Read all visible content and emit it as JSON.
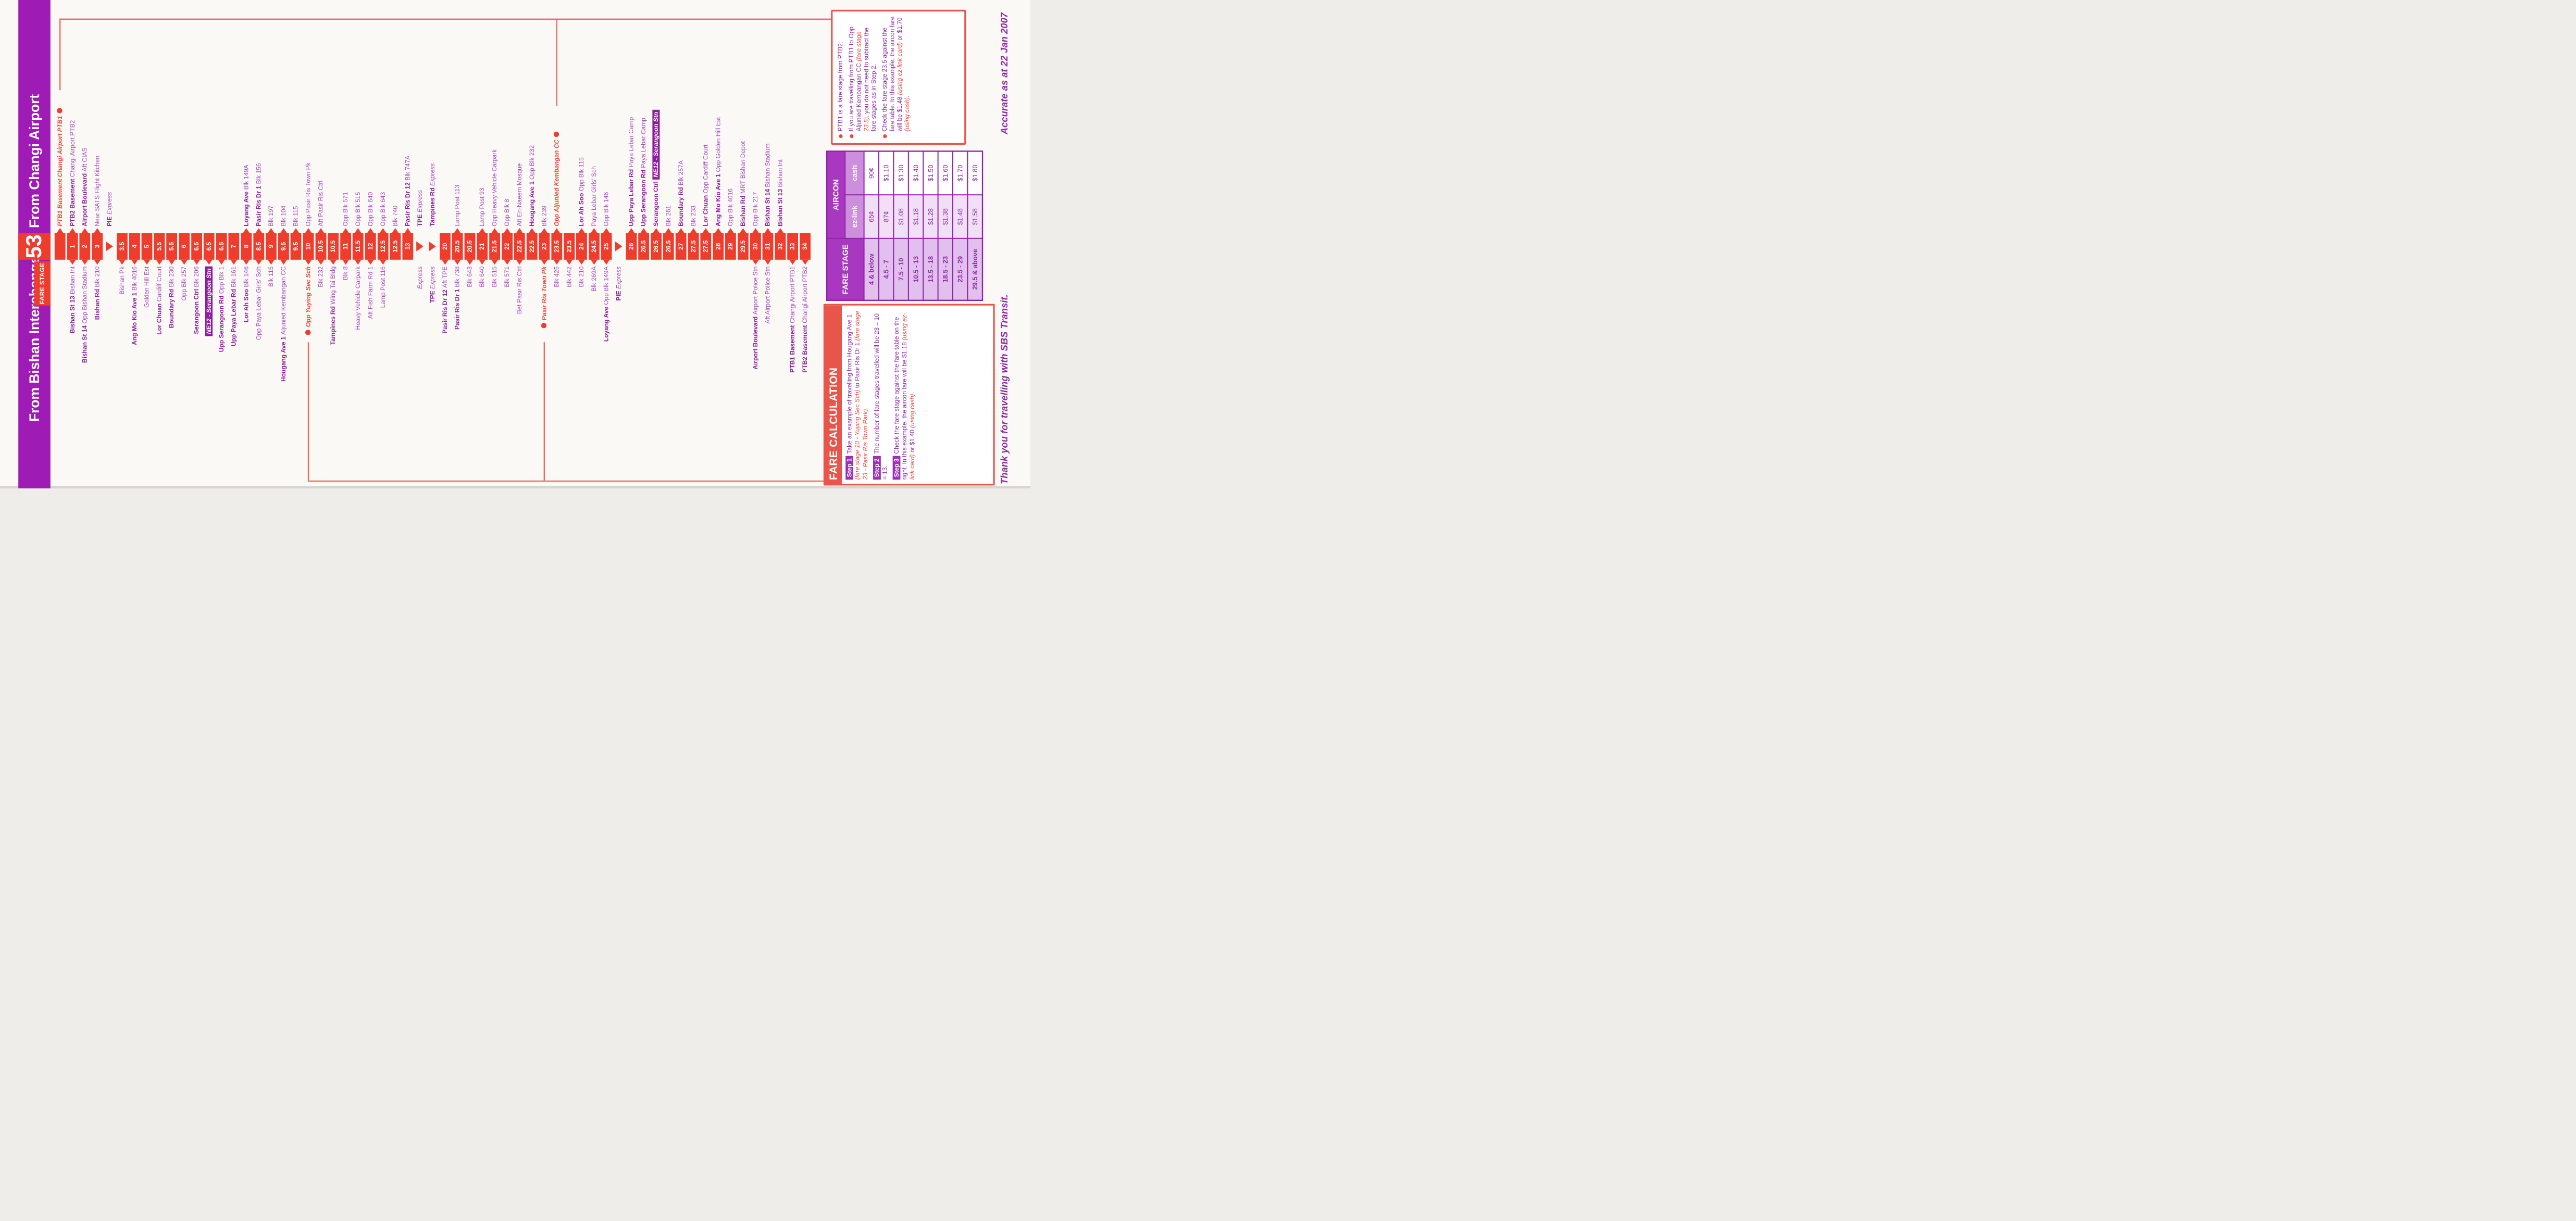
{
  "banner": {
    "left": "From Bishan Interchange",
    "service": "53",
    "fare_stage_label": "FARE STAGE",
    "right": "From Changi Airport"
  },
  "strip": {
    "stops": [
      {
        "n": "",
        "right": {
          "red": "PTB1 Basement Changi Airport PTB1",
          "dot": true
        }
      },
      {
        "n": "1",
        "left": {
          "b": "Bishan St 13",
          "r": "Bishan Int"
        },
        "right": {
          "b": "PTB2 Basement",
          "r": "Changi Airport PTB2"
        }
      },
      {
        "n": "2",
        "left": {
          "b": "Bishan St 14",
          "r": "Opp Bishan Stadium"
        },
        "right": {
          "b": "Airport Boulevard",
          "r": "Aft CIAS"
        }
      },
      {
        "n": "3",
        "left": {
          "b": "Bishan Rd",
          "r": "Blk 210"
        },
        "right": {
          "r": "Near SATS Flight Kitchen"
        }
      },
      {
        "t": "tri",
        "right": {
          "b": "PIE",
          "exp": "Express"
        }
      },
      {
        "n": "3.5",
        "left": {
          "r": "Bishan Pk"
        }
      },
      {
        "n": "4",
        "left": {
          "b": "Ang Mo Kio Ave 1",
          "r": "Blk 4016"
        }
      },
      {
        "n": "5",
        "left": {
          "r": "Golden Hill Est"
        }
      },
      {
        "n": "5.5",
        "left": {
          "b": "Lor Chuan",
          "r": "Cardiff Court"
        }
      },
      {
        "n": "5.5",
        "left": {
          "b": "Boundary Rd",
          "r": "Blk 230"
        }
      },
      {
        "n": "6",
        "left": {
          "r": "Opp Blk 257"
        }
      },
      {
        "n": "6.5",
        "left": {
          "b": "Serangoon Ctrl",
          "r": "Blk 206"
        }
      },
      {
        "n": "6.5",
        "left": {
          "hl": "NE12 - Serangoon Stn"
        }
      },
      {
        "n": "6.5",
        "left": {
          "b": "Upp Serangoon Rd",
          "r": "Opp Blk 1"
        }
      },
      {
        "n": "7",
        "left": {
          "b": "Upp Paya Lebar Rd",
          "r": "Blk 161"
        }
      },
      {
        "n": "8",
        "left": {
          "b": "Lor Ah Soo",
          "r": "Blk 146"
        },
        "right": {
          "b": "Loyang Ave",
          "r": "Blk 149A"
        }
      },
      {
        "n": "8.5",
        "left": {
          "r": "Opp Paya Lebar Girls' Sch"
        },
        "right": {
          "b": "Pasir Ris Dr 1",
          "r": "Blk 156"
        }
      },
      {
        "n": "9",
        "left": {
          "r": "Blk 115"
        },
        "right": {
          "r": "Blk 197"
        }
      },
      {
        "n": "9.5",
        "left": {
          "b": "Hougang Ave 1",
          "r": "Aljunied Kembangan CC"
        },
        "right": {
          "r": "Blk 104"
        }
      },
      {
        "n": "9.5",
        "right": {
          "r": "Blk 115"
        }
      },
      {
        "n": "10",
        "left": {
          "red": "Opp Yuying Sec Sch",
          "dot": true
        },
        "right": {
          "r": "Opp Pasir Ris Town Pk"
        }
      },
      {
        "n": "10.5",
        "left": {
          "r": "Blk 232"
        },
        "right": {
          "r": "Aft Pasir Ris Ctrl"
        }
      },
      {
        "n": "10.5",
        "left": {
          "b": "Tampines Rd",
          "r": "Wing Tai Bldg"
        }
      },
      {
        "n": "11",
        "left": {
          "r": "Blk 8"
        },
        "right": {
          "r": "Opp Blk 571"
        }
      },
      {
        "n": "11.5",
        "left": {
          "r": "Heavy Vehicle Carpark"
        },
        "right": {
          "r": "Opp Blk 515"
        }
      },
      {
        "n": "12",
        "left": {
          "r": "Aft Fish Farm Rd 1"
        },
        "right": {
          "r": "Opp Blk 640"
        }
      },
      {
        "n": "12.5",
        "left": {
          "r": "Lamp Post 116"
        },
        "right": {
          "r": "Opp Blk 643"
        }
      },
      {
        "n": "12.5",
        "right": {
          "r": "Blk 740"
        }
      },
      {
        "n": "13",
        "right": {
          "b": "Pasir Ris Dr 12",
          "r": "Blk 747A"
        }
      },
      {
        "t": "tri",
        "left": {
          "exp": "Express"
        },
        "right": {
          "b": "TPE",
          "exp": "Express"
        }
      },
      {
        "t": "tri",
        "left": {
          "b": "TPE",
          "exp": "Express"
        },
        "right": {
          "b": "Tampines Rd",
          "exp": "Express"
        }
      },
      {
        "n": "20",
        "left": {
          "b": "Pasir Ris Dr 12",
          "r": "Aft TPE"
        }
      },
      {
        "n": "20.5",
        "left": {
          "b": "Pasir Ris Dr 1",
          "r": "Blk 738"
        },
        "right": {
          "r": "Lamp Post 113"
        }
      },
      {
        "n": "20.5",
        "left": {
          "r": "Blk 643"
        }
      },
      {
        "n": "21",
        "left": {
          "r": "Blk 640"
        },
        "right": {
          "r": "Lamp Post 93"
        }
      },
      {
        "n": "21.5",
        "left": {
          "r": "Blk 515"
        },
        "right": {
          "r": "Opp Heavy Vehicle Carpark"
        }
      },
      {
        "n": "22",
        "left": {
          "r": "Blk 571"
        },
        "right": {
          "r": "Opp Blk 8"
        }
      },
      {
        "n": "22.5",
        "left": {
          "r": "Bef Pasir Ris Ctrl"
        },
        "right": {
          "r": "Aft En-Naeem Mosque"
        }
      },
      {
        "n": "22.5",
        "right": {
          "b": "Hougang Ave 1",
          "r": "Opp Blk 232"
        }
      },
      {
        "n": "23",
        "left": {
          "red": "Pasir Ris Town Pk",
          "dot": true
        },
        "right": {
          "r": "Blk 239"
        }
      },
      {
        "n": "23.5",
        "left": {
          "r": "Blk 425"
        },
        "right": {
          "red": "Opp Aljunied Kembangan CC",
          "dot": true
        }
      },
      {
        "n": "23.5",
        "left": {
          "r": "Blk 442"
        }
      },
      {
        "n": "24",
        "left": {
          "r": "Blk 210"
        },
        "right": {
          "b": "Lor Ah Soo",
          "r": "Opp Blk 115"
        }
      },
      {
        "n": "24.5",
        "left": {
          "r": "Blk 269A"
        },
        "right": {
          "r": "Paya Lebar Girls' Sch"
        }
      },
      {
        "n": "25",
        "left": {
          "b": "Loyang Ave",
          "r": "Opp Blk 149A"
        },
        "right": {
          "r": "Opp Blk 146"
        }
      },
      {
        "t": "tri",
        "left": {
          "b": "PIE",
          "exp": "Express"
        }
      },
      {
        "n": "26",
        "right": {
          "b": "Upp Paya Lebar Rd",
          "r": "Paya Lebar Camp"
        }
      },
      {
        "n": "26.5",
        "right": {
          "b": "Upp Serangoon Rd",
          "r": "Paya Lebar Camp"
        }
      },
      {
        "n": "26.5",
        "right": {
          "b": "Serangoon Ctrl",
          "hl": "NE12 - Serangoon Stn"
        }
      },
      {
        "n": "26.5",
        "right": {
          "r": "Blk 261"
        }
      },
      {
        "n": "27",
        "right": {
          "b": "Boundary Rd",
          "r": "Blk 257A"
        }
      },
      {
        "n": "27.5",
        "right": {
          "r": "Blk 233"
        }
      },
      {
        "n": "27.5",
        "right": {
          "b": "Lor Chuan",
          "r": "Opp Cardiff Court"
        }
      },
      {
        "n": "28",
        "right": {
          "b": "Ang Mo Kio Ave 1",
          "r": "Opp Golden Hill Est"
        }
      },
      {
        "n": "29",
        "right": {
          "r": "Opp Blk 4016"
        }
      },
      {
        "n": "29.5",
        "right": {
          "b": "Bishan Rd",
          "r": "MRT Bishan Depot"
        }
      },
      {
        "n": "30",
        "left": {
          "b": "Airport Boulevard",
          "r": "Airport Police Stn"
        },
        "right": {
          "r": "Opp Blk 217"
        }
      },
      {
        "n": "31",
        "left": {
          "r": "Aft Airport Police Stn"
        },
        "right": {
          "b": "Bishan St 14",
          "r": "Bishan Stadium"
        }
      },
      {
        "n": "32",
        "right": {
          "b": "Bishan St 13",
          "r": "Bishan Int"
        }
      },
      {
        "n": "33",
        "left": {
          "b": "PTB1 Basement",
          "r": "Changi Airport PTB1"
        }
      },
      {
        "n": "34",
        "left": {
          "b": "PTB2 Basement",
          "r": "Changi Airport PTB2"
        }
      }
    ]
  },
  "fare_table": {
    "col_stage": "FARE STAGE",
    "aircon": "AIRCON",
    "col_ezlink": "ez-link",
    "col_cash": "cash",
    "rows": [
      {
        "stage": "4 & below",
        "ezlink": "65¢",
        "cash": "90¢"
      },
      {
        "stage": "4.5 - 7",
        "ezlink": "87¢",
        "cash": "$1.10"
      },
      {
        "stage": "7.5 - 10",
        "ezlink": "$1.08",
        "cash": "$1.30"
      },
      {
        "stage": "10.5 - 13",
        "ezlink": "$1.18",
        "cash": "$1.40"
      },
      {
        "stage": "13.5 - 18",
        "ezlink": "$1.28",
        "cash": "$1.50"
      },
      {
        "stage": "18.5 - 23",
        "ezlink": "$1.38",
        "cash": "$1.60"
      },
      {
        "stage": "23.5 - 29",
        "ezlink": "$1.48",
        "cash": "$1.70"
      },
      {
        "stage": "29.5 & above",
        "ezlink": "$1.58",
        "cash": "$1.80"
      }
    ]
  },
  "fare_calc": {
    "title": "FARE CALCULATION",
    "steps": [
      {
        "badge": "Step 1",
        "segs": [
          {
            "t": "Take an example of travelling from Hougang Ave 1 "
          },
          {
            "t": "(fare stage 10 - Yuying Sec Sch)",
            "red": true
          },
          {
            "t": " to Pasir Ris Dr 1 "
          },
          {
            "t": "(fare stage 23 - Pasir Ris Town Park)",
            "red": true
          },
          {
            "t": "."
          }
        ]
      },
      {
        "badge": "Step 2",
        "segs": [
          {
            "t": "The number of fare stages travelled will be 23 – 10 = 13."
          }
        ]
      },
      {
        "badge": "Step 3",
        "segs": [
          {
            "t": "Check the fare stage against the fare table on the right. In this example, the aircon fare will be $1.18 "
          },
          {
            "t": "(using ez-link card)",
            "red": true
          },
          {
            "t": " or $1.40 "
          },
          {
            "t": "(using cash)",
            "red": true
          },
          {
            "t": "."
          }
        ]
      }
    ]
  },
  "notes": {
    "bullets": [
      {
        "segs": [
          {
            "t": "PTB1 is a fare stage from PTB2."
          }
        ]
      },
      {
        "segs": [
          {
            "t": "If you are travelling from PTB1 to Opp Aljunied Kembangan CC "
          },
          {
            "t": "(fare stage 23.5)",
            "red": true
          },
          {
            "t": ", you do not need to subtract the fare stages as in Step 2."
          }
        ]
      },
      {
        "segs": [
          {
            "t": "Check the fare stage 23.5 against the fare table. In this example, the aircon fare will be $1.48 "
          },
          {
            "t": "(using ez-link card)",
            "red": true
          },
          {
            "t": " or $1.70 "
          },
          {
            "t": "(using cash)",
            "red": true
          },
          {
            "t": "."
          }
        ]
      }
    ]
  },
  "captions": {
    "thank_you": "Thank you for travelling with SBS Transit.",
    "accurate": "Accurate as at 22 Jan 2007"
  },
  "colors": {
    "banner_purple": "#9e1bb5",
    "stage_red": "#ee3c2d",
    "name_purple_bold": "#8b1d9e",
    "name_purple": "#a64bbc",
    "example_red": "#e8473a",
    "connector_red": "#f2695c",
    "table_border_purple": "#8f21a8"
  }
}
